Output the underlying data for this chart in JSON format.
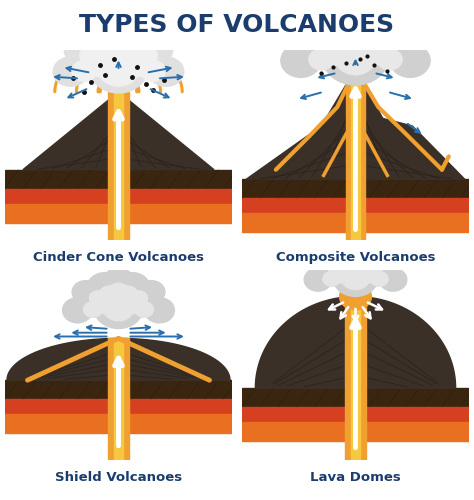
{
  "title": "TYPES OF VOLCANOES",
  "title_color": "#1b3d6e",
  "title_fontsize": 18,
  "background_color": "#ffffff",
  "labels": [
    "Cinder Cone Volcanoes",
    "Composite Volcanoes",
    "Shield Volcanoes",
    "Lava Domes"
  ],
  "label_fontsize": 9.5,
  "label_color": "#1b3d6e",
  "colors": {
    "dark_rock": "#3a3028",
    "rock_stripe": "#2a221c",
    "lava_orange": "#f0a030",
    "lava_yellow": "#f5c840",
    "ground_dark": "#3a2510",
    "ground_mid": "#8b4513",
    "layer_red1": "#d44020",
    "layer_red2": "#e05020",
    "layer_orange": "#e87020",
    "magma_glow": "#f5a820",
    "smoke_light": "#d8d8d8",
    "smoke_mid": "#c0c0c0",
    "smoke_dark": "#a8a8a8",
    "arrow_blue": "#2a6fad",
    "arrow_white": "#ffffff",
    "ground_surface": "#5a3515"
  }
}
